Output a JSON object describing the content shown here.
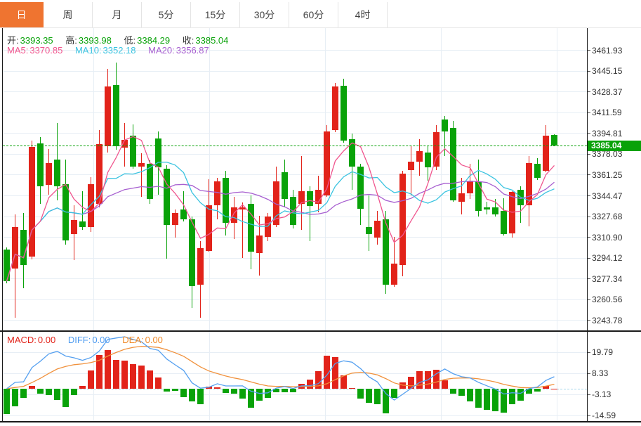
{
  "tabs": {
    "items": [
      {
        "label": "日",
        "active": true
      },
      {
        "label": "周",
        "active": false
      },
      {
        "label": "月",
        "active": false
      },
      {
        "label": "5分",
        "active": false
      },
      {
        "label": "15分",
        "active": false
      },
      {
        "label": "30分",
        "active": false
      },
      {
        "label": "60分",
        "active": false
      },
      {
        "label": "4时",
        "active": false
      }
    ]
  },
  "legend_ohlc": {
    "o_label": "开:",
    "o": "3393.35",
    "h_label": "高:",
    "h": "3393.98",
    "l_label": "低:",
    "l": "3384.29",
    "c_label": "收:",
    "c": "3385.04"
  },
  "legend_ma": {
    "ma5_label": "MA5:",
    "ma5": "3370.85",
    "ma10_label": "MA10:",
    "ma10": "3352.18",
    "ma20_label": "MA20:",
    "ma20": "3356.87"
  },
  "legend_macd": {
    "macd_label": "MACD:",
    "macd": "0.00",
    "diff_label": "DIFF:",
    "diff": "0.00",
    "dea_label": "DEA:",
    "dea": "0.00"
  },
  "price_axis": {
    "labels": [
      "3461.93",
      "3445.15",
      "3428.37",
      "3411.59",
      "3394.81",
      "3378.03",
      "3361.25",
      "3344.47",
      "3327.68",
      "3310.90",
      "3294.12",
      "3277.34",
      "3260.56",
      "3243.78"
    ]
  },
  "macd_axis": {
    "labels": [
      "19.79",
      "8.33",
      "-3.13",
      "-14.59"
    ]
  },
  "colors": {
    "up_red": "#e2231a",
    "down_green": "#09a209",
    "ma5": "#f0568e",
    "ma10": "#39c3e0",
    "ma20": "#a75fd0",
    "diff_blue": "#55a0f0",
    "dea_orange": "#f0913c",
    "grid": "#e7eef5",
    "axis_text": "#333333",
    "frame": "#1a1a1a",
    "tab_active_bg": "#ef7430",
    "badge_bg": "#09a209",
    "zero_dashed": "#a8d8ec",
    "price_dashed": "#09a209"
  },
  "chart_data": {
    "type": "candlestick+macd",
    "period_selected": "日",
    "last_price": 3385.04,
    "last_price_label": "3385.04",
    "price_axis_ticks": [
      3461.93,
      3445.15,
      3428.37,
      3411.59,
      3394.81,
      3378.03,
      3361.25,
      3344.47,
      3327.68,
      3310.9,
      3294.12,
      3277.34,
      3260.56,
      3243.78
    ],
    "macd_axis_ticks": [
      19.79,
      8.33,
      -3.13,
      -14.59
    ],
    "current": {
      "open": 3393.35,
      "high": 3393.98,
      "low": 3384.29,
      "close": 3385.04,
      "ma5": 3370.85,
      "ma10": 3352.18,
      "ma20": 3356.87,
      "macd": 0.0,
      "diff": 0.0,
      "dea": 0.0
    },
    "moving_averages": [
      "MA5",
      "MA10",
      "MA20"
    ],
    "candles_format": [
      "open",
      "high",
      "low",
      "close"
    ],
    "candles": [
      [
        3301.0,
        3302.9,
        3273.6,
        3275.5
      ],
      [
        3285.9,
        3329.5,
        3246.2,
        3319.1
      ],
      [
        3317.1,
        3330.4,
        3269.8,
        3288.7
      ],
      [
        3295.4,
        3389.1,
        3293.0,
        3384.0
      ],
      [
        3387.0,
        3391.9,
        3338.0,
        3352.2
      ],
      [
        3353.1,
        3382.4,
        3345.5,
        3371.1
      ],
      [
        3373.9,
        3403.2,
        3340.8,
        3352.2
      ],
      [
        3354.1,
        3373.9,
        3304.9,
        3308.6
      ],
      [
        3313.4,
        3337.0,
        3292.5,
        3324.7
      ],
      [
        3323.8,
        3348.4,
        3317.2,
        3319.1
      ],
      [
        3319.1,
        3359.7,
        3315.3,
        3354.1
      ],
      [
        3338.0,
        3397.6,
        3335.1,
        3386.2
      ],
      [
        3384.4,
        3446.8,
        3379.6,
        3433.0
      ],
      [
        3434.1,
        3451.9,
        3381.5,
        3384.4
      ],
      [
        3383.4,
        3403.2,
        3368.3,
        3389.5
      ],
      [
        3392.9,
        3402.3,
        3366.4,
        3368.3
      ],
      [
        3368.3,
        3378.7,
        3343.6,
        3371.1
      ],
      [
        3370.3,
        3373.2,
        3338.0,
        3341.9
      ],
      [
        3391.0,
        3396.7,
        3345.5,
        3367.4
      ],
      [
        3366.4,
        3369.2,
        3293.5,
        3320.9
      ],
      [
        3320.9,
        3333.4,
        3310.5,
        3330.4
      ],
      [
        3333.2,
        3348.4,
        3323.8,
        3325.6
      ],
      [
        3325.6,
        3327.7,
        3253.7,
        3271.7
      ],
      [
        3272.6,
        3307.7,
        3246.2,
        3302.0
      ],
      [
        3300.1,
        3357.8,
        3299.4,
        3337.0
      ],
      [
        3337.0,
        3358.8,
        3325.6,
        3356.0
      ],
      [
        3358.8,
        3364.5,
        3312.4,
        3322.8
      ],
      [
        3322.8,
        3343.6,
        3309.6,
        3335.1
      ],
      [
        3333.2,
        3339.0,
        3294.4,
        3335.1
      ],
      [
        3338.0,
        3344.6,
        3285.0,
        3299.2
      ],
      [
        3298.2,
        3328.5,
        3280.2,
        3312.4
      ],
      [
        3311.4,
        3330.4,
        3307.7,
        3327.5
      ],
      [
        3320.9,
        3368.3,
        3319.0,
        3356.0
      ],
      [
        3363.5,
        3373.9,
        3335.1,
        3341.8
      ],
      [
        3343.6,
        3349.3,
        3318.1,
        3320.9
      ],
      [
        3338.0,
        3376.8,
        3317.2,
        3348.4
      ],
      [
        3348.4,
        3352.2,
        3307.7,
        3336.1
      ],
      [
        3338.0,
        3360.7,
        3331.3,
        3349.3
      ],
      [
        3344.6,
        3401.4,
        3343.6,
        3396.7
      ],
      [
        3397.6,
        3435.5,
        3395.7,
        3432.6
      ],
      [
        3433.5,
        3439.2,
        3387.2,
        3389.1
      ],
      [
        3390.1,
        3394.8,
        3349.3,
        3368.3
      ],
      [
        3368.3,
        3370.2,
        3320.9,
        3334.2
      ],
      [
        3319.0,
        3344.6,
        3300.1,
        3313.4
      ],
      [
        3310.5,
        3332.3,
        3304.9,
        3324.3
      ],
      [
        3325.6,
        3332.3,
        3265.1,
        3272.6
      ],
      [
        3272.6,
        3311.5,
        3270.7,
        3289.7
      ],
      [
        3288.8,
        3364.7,
        3279.3,
        3362.6
      ],
      [
        3365.4,
        3384.4,
        3344.6,
        3372.0
      ],
      [
        3372.0,
        3390.1,
        3360.7,
        3380.6
      ],
      [
        3379.6,
        3385.3,
        3356.9,
        3367.4
      ],
      [
        3368.3,
        3401.4,
        3365.4,
        3395.7
      ],
      [
        3406.1,
        3409.0,
        3376.8,
        3396.7
      ],
      [
        3399.4,
        3405.2,
        3339.7,
        3340.8
      ],
      [
        3339.8,
        3358.8,
        3329.4,
        3346.5
      ],
      [
        3346.5,
        3370.2,
        3341.7,
        3356.0
      ],
      [
        3356.0,
        3373.9,
        3327.6,
        3332.3
      ],
      [
        3335.1,
        3339.9,
        3329.4,
        3333.2
      ],
      [
        3335.1,
        3341.7,
        3327.7,
        3329.4
      ],
      [
        3332.3,
        3342.7,
        3312.4,
        3313.4
      ],
      [
        3314.3,
        3348.4,
        3310.5,
        3347.5
      ],
      [
        3349.3,
        3352.2,
        3322.8,
        3337.0
      ],
      [
        3337.0,
        3376.8,
        3319.9,
        3371.1
      ],
      [
        3370.2,
        3374.9,
        3357.0,
        3358.8
      ],
      [
        3364.5,
        3401.4,
        3363.5,
        3392.9
      ],
      [
        3393.35,
        3393.98,
        3384.29,
        3385.04
      ]
    ],
    "macd_histogram": [
      -13.8,
      -9.4,
      -5.0,
      1.4,
      -2.7,
      -3.4,
      -6.0,
      -9.8,
      -3.4,
      1.4,
      10.0,
      18.3,
      21.1,
      15.8,
      15.2,
      13.5,
      12.6,
      10.0,
      6.2,
      -1.5,
      -1.0,
      -4.5,
      -6.8,
      -8.5,
      1.2,
      0.8,
      -2.2,
      -2.8,
      -5.5,
      -10.3,
      -6.5,
      -5.0,
      -2.0,
      -1.8,
      -2.0,
      2.5,
      4.8,
      9.5,
      18.0,
      17.1,
      7.1,
      0.5,
      -5.5,
      -7.5,
      -8.5,
      -13.3,
      -5.0,
      3.5,
      6.5,
      9.7,
      9.7,
      10.4,
      4.6,
      -2.7,
      -3.7,
      -6.9,
      -10.3,
      -11.6,
      -12.2,
      -12.9,
      -8.4,
      -6.5,
      -2.7,
      -1.4,
      1.5,
      0.0
    ]
  }
}
